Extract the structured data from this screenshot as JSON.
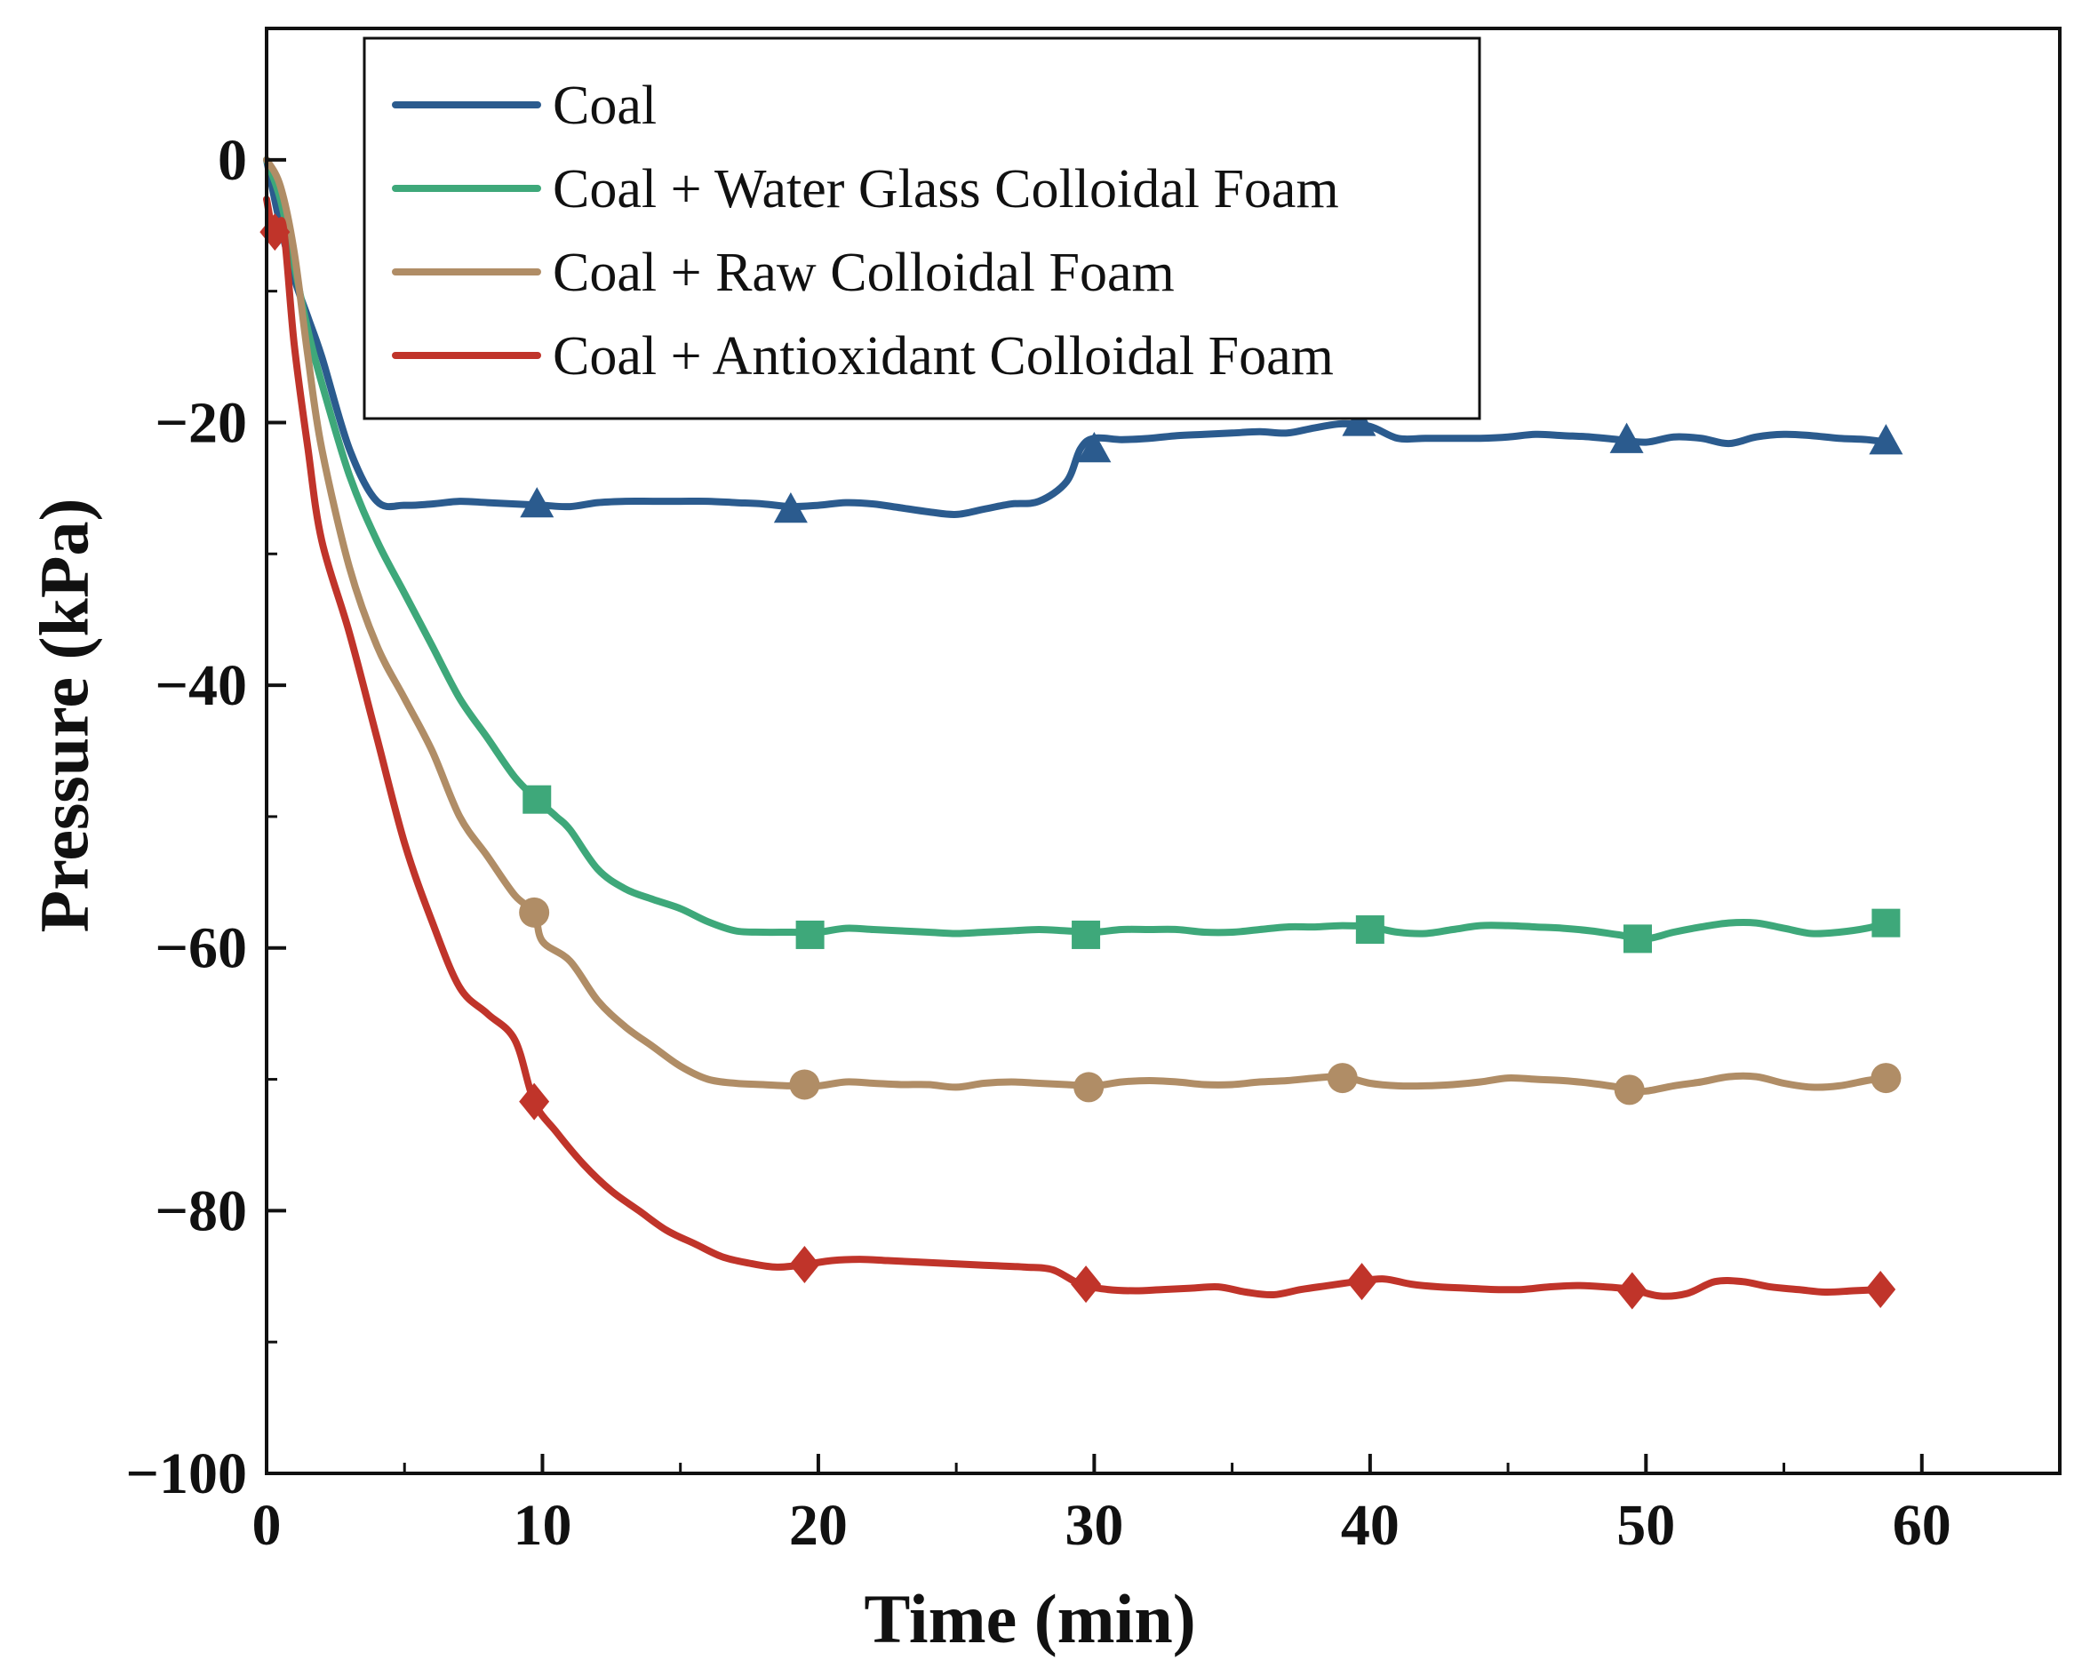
{
  "chart_data": {
    "type": "line",
    "title": "",
    "xlabel": "Time (min)",
    "ylabel": "Pressure (kPa)",
    "xlim": [
      0,
      65
    ],
    "ylim": [
      -100,
      10
    ],
    "xticks": [
      0,
      10,
      20,
      30,
      40,
      50,
      60
    ],
    "yticks": [
      0,
      -20,
      -40,
      -60,
      -80,
      -100
    ],
    "xtick_labels": [
      "0",
      "10",
      "20",
      "30",
      "40",
      "50",
      "60"
    ],
    "ytick_labels": [
      "0",
      "−20",
      "−40",
      "−60",
      "−80",
      "−100"
    ],
    "legend_position": "top-left",
    "series": [
      {
        "name": "Coal",
        "color": "#2b5b8e",
        "marker": "triangle",
        "x": [
          0,
          0.5,
          1,
          1.5,
          2,
          3,
          4,
          5,
          6,
          7,
          8,
          9,
          10,
          11,
          12,
          13,
          14,
          15,
          16,
          17,
          18,
          19,
          20,
          21,
          22,
          23,
          24,
          25,
          26,
          27,
          28,
          29,
          29.5,
          30,
          31,
          32,
          33,
          34,
          35,
          36,
          37,
          38,
          39,
          40,
          41,
          42,
          43,
          44,
          45,
          46,
          47,
          48,
          49,
          50,
          51,
          52,
          53,
          54,
          55,
          56,
          57,
          58,
          58.7
        ],
        "y": [
          0,
          -5,
          -9,
          -12,
          -15,
          -22,
          -26,
          -26.3,
          -26.2,
          -26,
          -26.1,
          -26.2,
          -26.3,
          -26.4,
          -26.1,
          -26,
          -26,
          -26,
          -26,
          -26.1,
          -26.2,
          -26.4,
          -26.3,
          -26.1,
          -26.2,
          -26.5,
          -26.8,
          -27,
          -26.6,
          -26.2,
          -26,
          -24.5,
          -22,
          -21.2,
          -21.3,
          -21.2,
          -21,
          -20.9,
          -20.8,
          -20.7,
          -20.8,
          -20.4,
          -20.1,
          -20.3,
          -21.2,
          -21.2,
          -21.2,
          -21.2,
          -21.1,
          -20.9,
          -21,
          -21.1,
          -21.3,
          -21.5,
          -21.1,
          -21.2,
          -21.6,
          -21.1,
          -20.9,
          -21,
          -21.2,
          -21.3,
          -21.5
        ],
        "markers_x": [
          9.8,
          19,
          30,
          39.6,
          49.3,
          58.7
        ],
        "markers_y": [
          -26.2,
          -26.6,
          -22,
          -20,
          -21.3,
          -21.4
        ]
      },
      {
        "name": "Coal + Water Glass Colloidal Foam",
        "color": "#3ea87a",
        "marker": "square",
        "x": [
          0,
          0.5,
          1,
          1.5,
          2,
          3,
          4,
          5,
          6,
          7,
          8,
          9,
          9.8,
          10.5,
          11,
          12,
          13,
          14,
          15,
          16,
          17,
          18,
          19,
          20,
          21,
          22,
          23,
          24,
          25,
          26,
          27,
          28,
          29,
          30,
          31,
          32,
          33,
          34,
          35,
          36,
          37,
          38,
          39,
          40,
          41,
          42,
          43,
          44,
          45,
          46,
          47,
          48,
          49,
          50,
          51,
          52,
          53,
          54,
          55,
          56,
          57,
          58,
          58.7
        ],
        "y": [
          0,
          -3,
          -8,
          -13,
          -17,
          -24,
          -29,
          -33,
          -37,
          -41,
          -44,
          -47,
          -48.7,
          -50,
          -51,
          -54,
          -55.5,
          -56.3,
          -57,
          -58,
          -58.7,
          -58.8,
          -58.8,
          -58.8,
          -58.5,
          -58.6,
          -58.7,
          -58.8,
          -58.9,
          -58.8,
          -58.7,
          -58.6,
          -58.7,
          -58.8,
          -58.6,
          -58.6,
          -58.6,
          -58.8,
          -58.8,
          -58.6,
          -58.4,
          -58.4,
          -58.3,
          -58.4,
          -58.8,
          -58.9,
          -58.6,
          -58.3,
          -58.3,
          -58.4,
          -58.5,
          -58.7,
          -59,
          -59.3,
          -58.8,
          -58.4,
          -58.1,
          -58.1,
          -58.5,
          -58.9,
          -58.8,
          -58.5,
          -58.1
        ],
        "markers_x": [
          9.8,
          19.7,
          29.7,
          40,
          49.7,
          58.7
        ],
        "markers_y": [
          -48.7,
          -59,
          -59,
          -58.6,
          -59.3,
          -58.1
        ]
      },
      {
        "name": "Coal + Raw Colloidal Foam",
        "color": "#b08d66",
        "marker": "circle",
        "x": [
          0,
          0.5,
          1,
          1.5,
          2,
          3,
          4,
          5,
          6,
          7,
          8,
          9,
          9.7,
          10,
          11,
          12,
          13,
          14,
          15,
          16,
          17,
          18,
          19,
          20,
          21,
          22,
          23,
          24,
          25,
          26,
          27,
          28,
          29,
          30,
          31,
          32,
          33,
          34,
          35,
          36,
          37,
          38,
          39,
          40,
          41,
          42,
          43,
          44,
          45,
          46,
          47,
          48,
          49,
          49.5,
          50,
          51,
          52,
          53,
          54,
          55,
          56,
          57,
          58,
          58.7
        ],
        "y": [
          0,
          -2,
          -7,
          -15,
          -22,
          -31,
          -37,
          -41,
          -45,
          -50,
          -53,
          -56,
          -57.3,
          -59.5,
          -61,
          -64,
          -66,
          -67.5,
          -69,
          -70,
          -70.3,
          -70.4,
          -70.5,
          -70.5,
          -70.2,
          -70.3,
          -70.4,
          -70.4,
          -70.6,
          -70.3,
          -70.2,
          -70.3,
          -70.4,
          -70.5,
          -70.2,
          -70.1,
          -70.2,
          -70.4,
          -70.4,
          -70.2,
          -70.1,
          -69.9,
          -69.8,
          -70.3,
          -70.5,
          -70.5,
          -70.4,
          -70.2,
          -69.9,
          -70,
          -70.1,
          -70.3,
          -70.6,
          -70.8,
          -70.9,
          -70.5,
          -70.2,
          -69.8,
          -69.8,
          -70.3,
          -70.6,
          -70.5,
          -70.1,
          -69.9
        ],
        "markers_x": [
          9.7,
          19.5,
          29.8,
          39,
          49.4,
          58.7
        ],
        "markers_y": [
          -57.3,
          -70.4,
          -70.6,
          -69.9,
          -70.8,
          -69.9
        ]
      },
      {
        "name": "Coal + Antioxidant Colloidal Foam",
        "color": "#c0342a",
        "marker": "diamond",
        "x": [
          0,
          0.3,
          0.6,
          1,
          1.5,
          2,
          3,
          4,
          5,
          6,
          7,
          8,
          9,
          9.7,
          10.5,
          11.5,
          12.5,
          13.5,
          14.5,
          15.5,
          16.5,
          17.5,
          18.5,
          19.5,
          20.5,
          21.5,
          22.5,
          23.5,
          24.5,
          25.5,
          26.5,
          27.5,
          28.5,
          29.5,
          30.5,
          31.5,
          32.5,
          33.5,
          34.5,
          35.5,
          36.5,
          37.5,
          38.5,
          39.5,
          40.5,
          41.5,
          42.5,
          43.5,
          44.5,
          45.5,
          46.5,
          47.5,
          48.5,
          49.5,
          50.5,
          51.5,
          52.5,
          53.5,
          54.5,
          55.5,
          56.5,
          57.5,
          58.5
        ],
        "y": [
          -3,
          -6,
          -5,
          -14,
          -22,
          -29,
          -36,
          -44,
          -52,
          -58,
          -63,
          -65,
          -67,
          -71.7,
          -74,
          -76.5,
          -78.5,
          -80,
          -81.5,
          -82.5,
          -83.5,
          -84,
          -84.3,
          -84.1,
          -83.8,
          -83.7,
          -83.8,
          -83.9,
          -84,
          -84.1,
          -84.2,
          -84.3,
          -84.5,
          -85.6,
          -86,
          -86.1,
          -86,
          -85.9,
          -85.8,
          -86.2,
          -86.4,
          -86,
          -85.7,
          -85.4,
          -85.2,
          -85.6,
          -85.8,
          -85.9,
          -86,
          -86,
          -85.8,
          -85.7,
          -85.8,
          -86,
          -86.5,
          -86.3,
          -85.4,
          -85.4,
          -85.8,
          -86,
          -86.2,
          -86.1,
          -86
        ],
        "markers_x": [
          0.3,
          9.7,
          19.5,
          29.7,
          39.7,
          49.5,
          58.5
        ],
        "markers_y": [
          -5.5,
          -71.7,
          -84.1,
          -85.6,
          -85.4,
          -86.1,
          -86
        ]
      }
    ]
  }
}
